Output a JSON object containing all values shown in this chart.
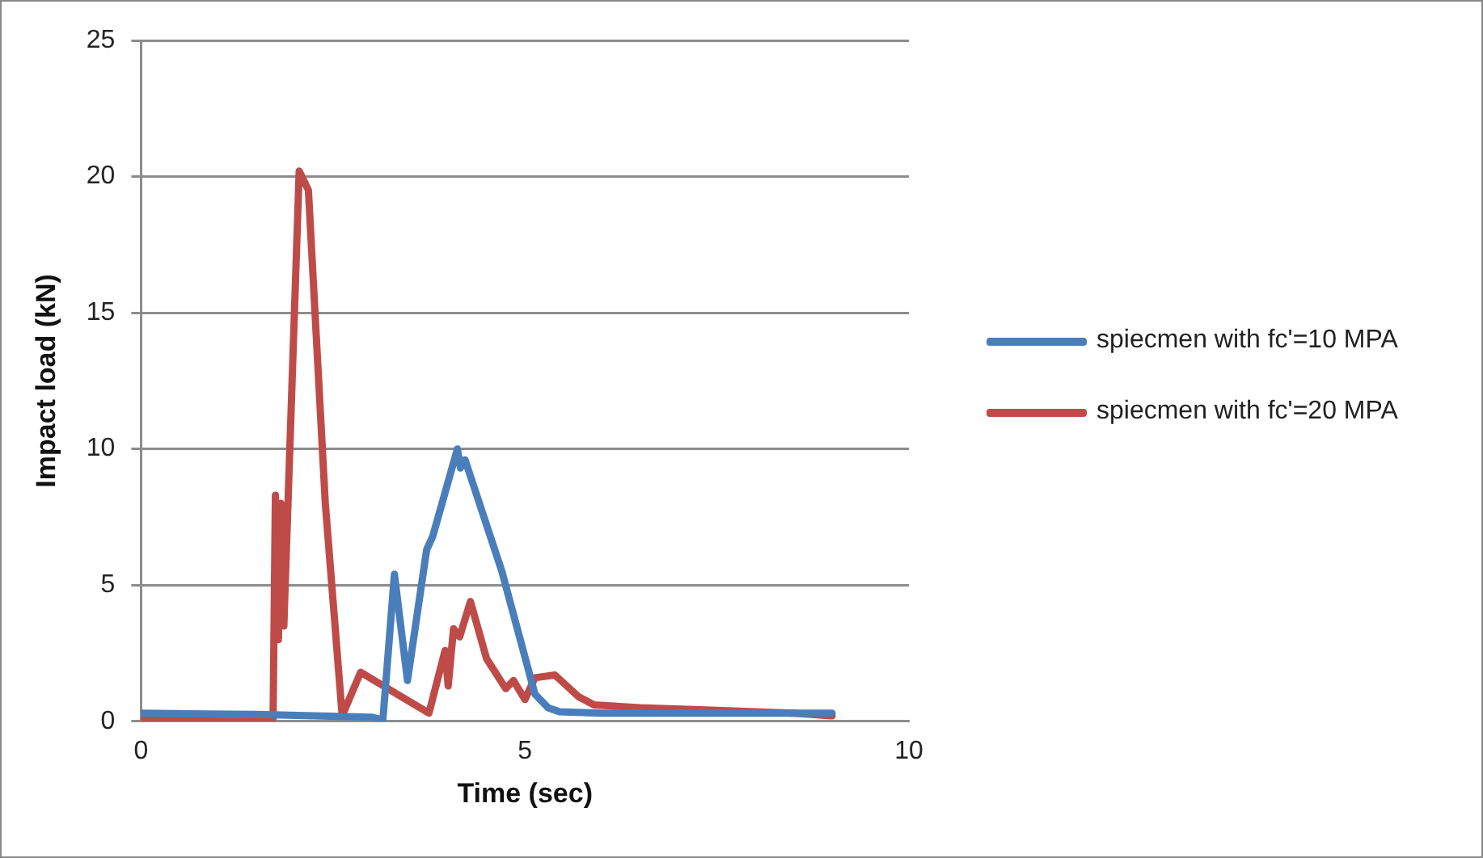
{
  "chart_data": {
    "type": "line",
    "xlabel": "Time (sec)",
    "ylabel": "Impact load (kN)",
    "xlim": [
      0,
      10
    ],
    "xticks": [
      0,
      5,
      10
    ],
    "ylim": [
      0,
      25
    ],
    "yticks": [
      0,
      5,
      10,
      15,
      20,
      25
    ],
    "grid": "y",
    "legend": "right",
    "marker": "none",
    "line_style": "solid",
    "series": [
      {
        "name": "spiecmen with fc'=10 MPA",
        "color": "#4a7ebb",
        "x": [
          0,
          1.5,
          3.0,
          3.15,
          3.3,
          3.47,
          3.72,
          3.8,
          4.12,
          4.16,
          4.22,
          4.7,
          5.13,
          5.3,
          5.45,
          6,
          7,
          8,
          9
        ],
        "values": [
          0.3,
          0.25,
          0.15,
          0.05,
          5.4,
          1.5,
          6.3,
          6.8,
          10,
          9.3,
          9.6,
          5.5,
          1.0,
          0.5,
          0.35,
          0.3,
          0.3,
          0.3,
          0.3
        ]
      },
      {
        "name": "spiecmen with fc'=20 MPA",
        "color": "#be4b48",
        "x": [
          0,
          1.0,
          1.72,
          1.75,
          1.79,
          1.82,
          1.86,
          2.06,
          2.18,
          2.4,
          2.62,
          2.86,
          3.75,
          3.96,
          4.0,
          4.07,
          4.15,
          4.29,
          4.5,
          4.75,
          4.85,
          5.0,
          5.13,
          5.39,
          5.7,
          5.9,
          6.5,
          7.5,
          8.5,
          9
        ],
        "values": [
          0.1,
          0.1,
          0.1,
          8.3,
          3.0,
          8.0,
          3.5,
          20.2,
          19.5,
          8,
          0.2,
          1.8,
          0.3,
          2.6,
          1.3,
          3.4,
          3.1,
          4.4,
          2.3,
          1.2,
          1.5,
          0.8,
          1.6,
          1.7,
          0.9,
          0.6,
          0.5,
          0.4,
          0.3,
          0.2
        ]
      }
    ]
  }
}
